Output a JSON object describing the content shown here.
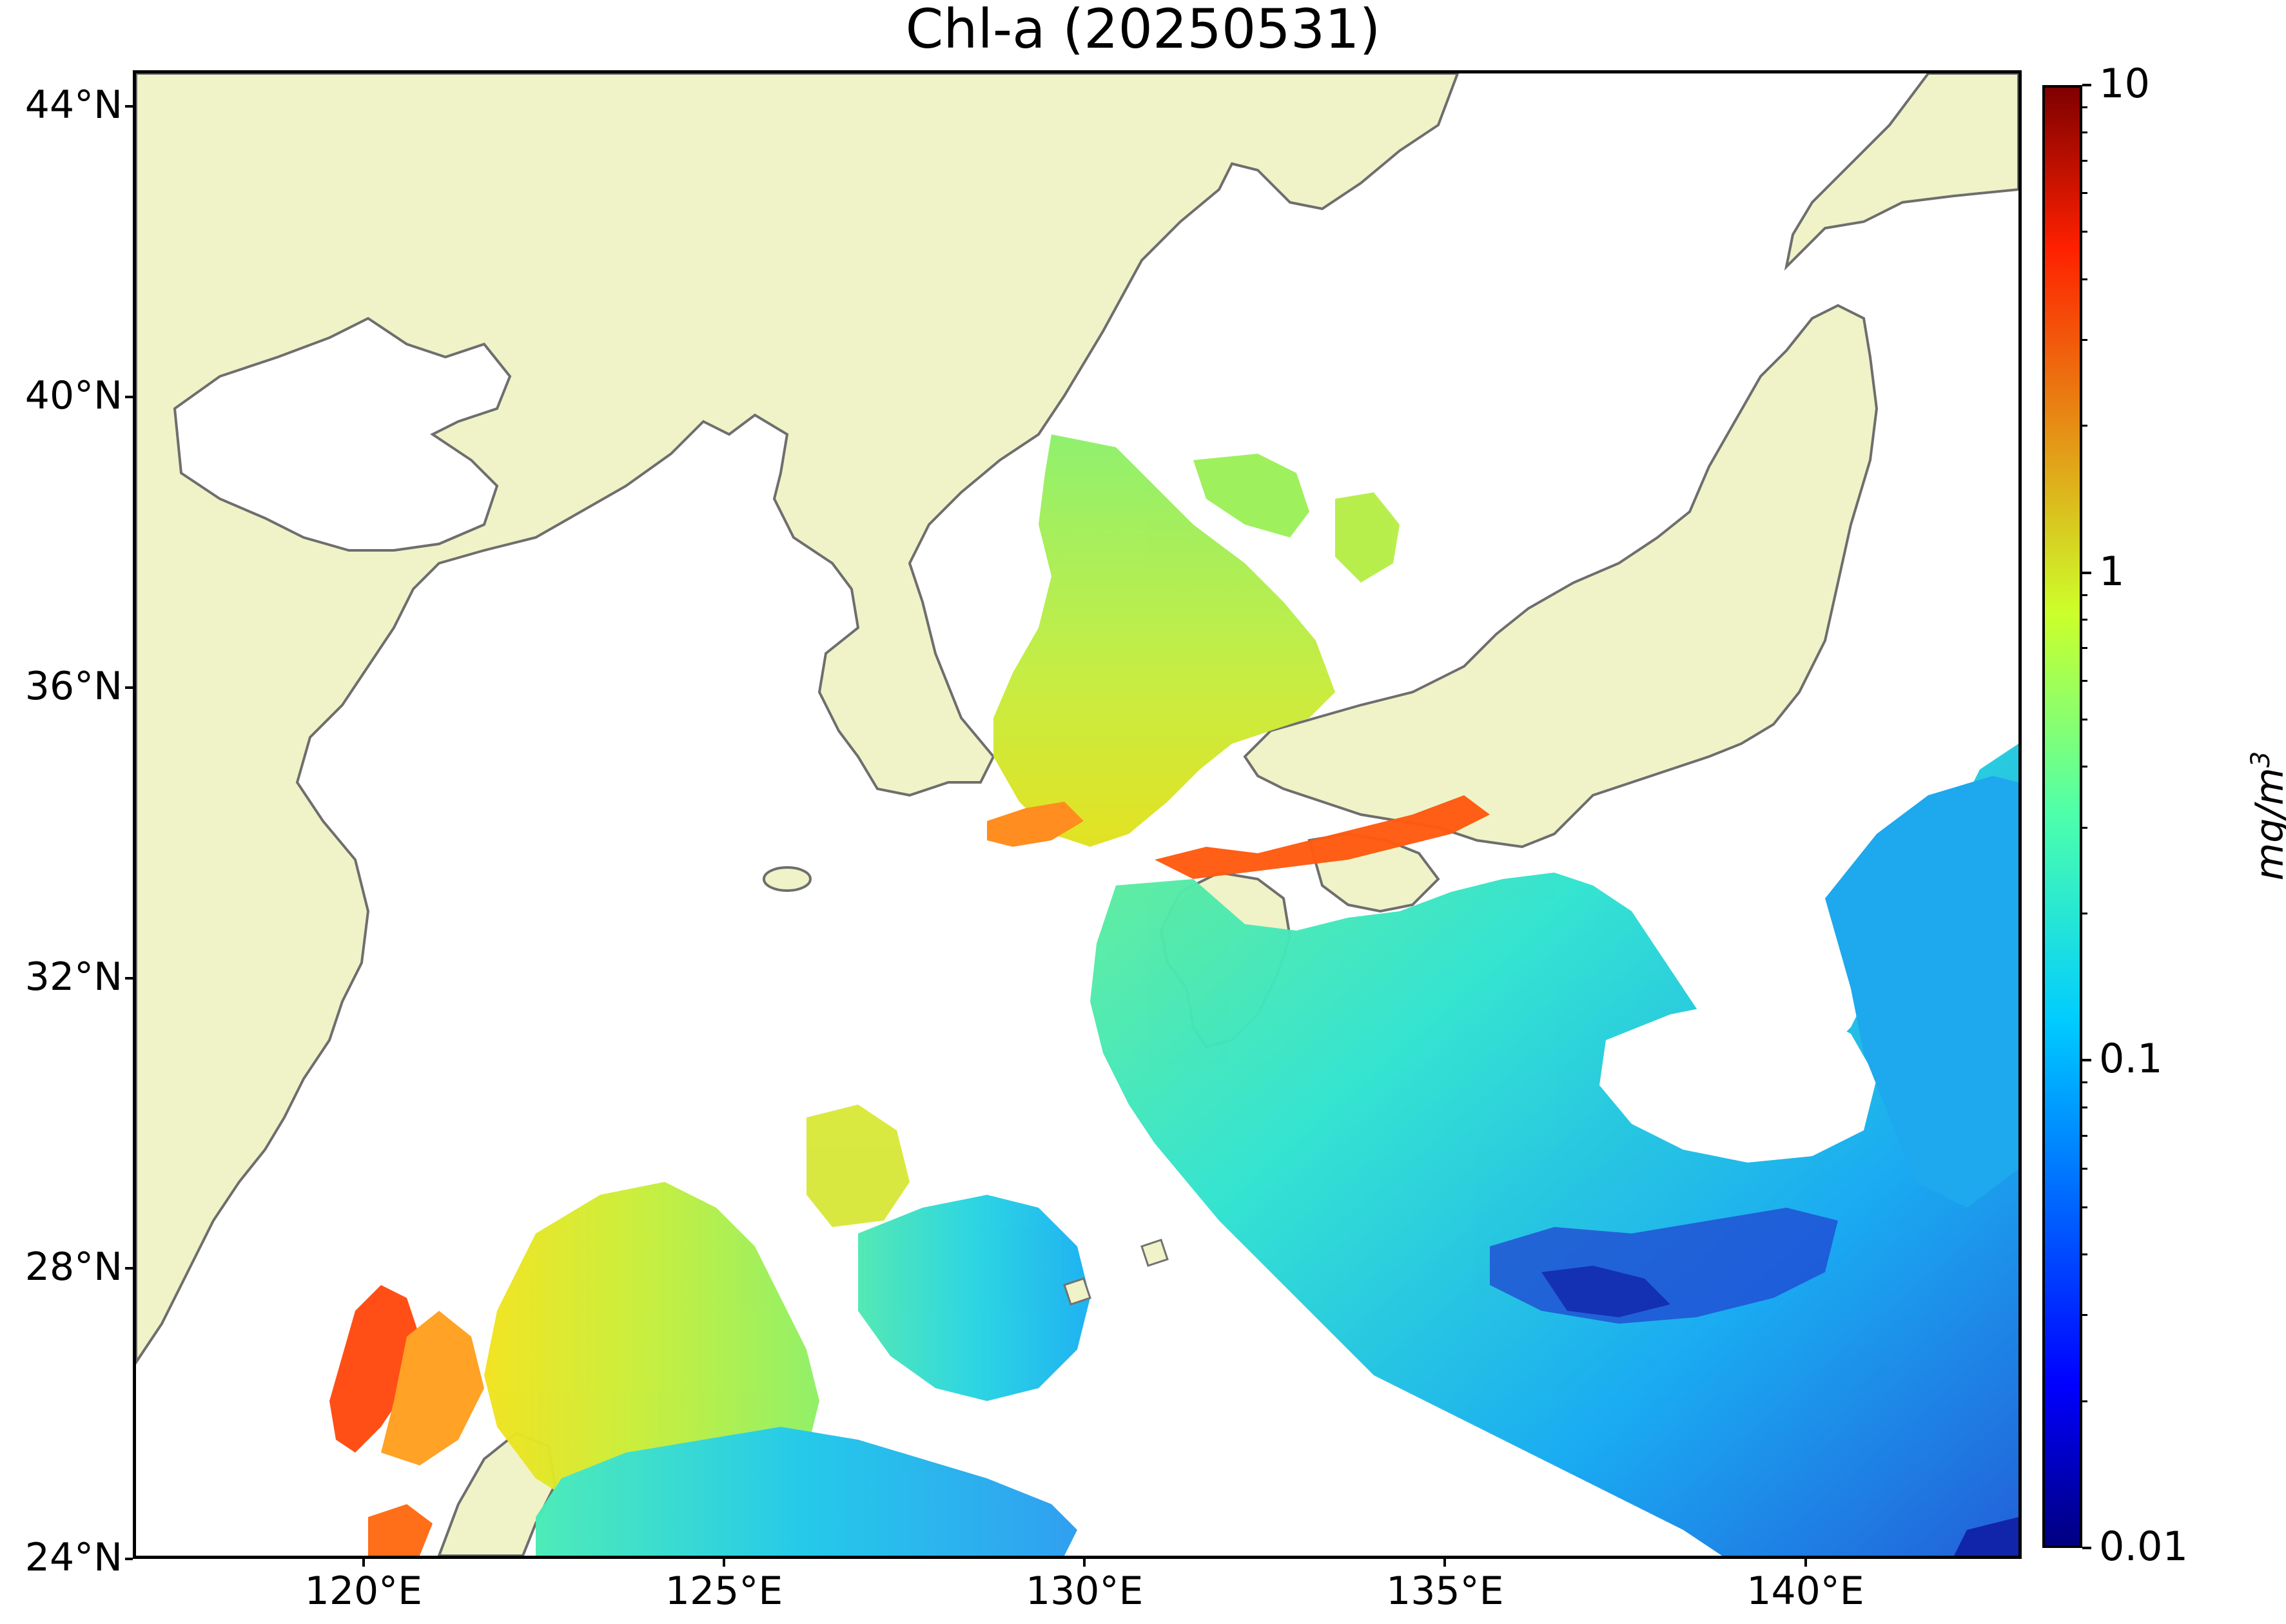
{
  "title": "Chl-a (20250531)",
  "map": {
    "lat_range": [
      24,
      44.5
    ],
    "lon_range": [
      116.8,
      143.0
    ],
    "lat_ticks": [
      {
        "value": 44,
        "label": "44°N"
      },
      {
        "value": 40,
        "label": "40°N"
      },
      {
        "value": 36,
        "label": "36°N"
      },
      {
        "value": 32,
        "label": "32°N"
      },
      {
        "value": 28,
        "label": "28°N"
      },
      {
        "value": 24,
        "label": "24°N"
      }
    ],
    "lon_ticks": [
      {
        "value": 120,
        "label": "120°E"
      },
      {
        "value": 125,
        "label": "125°E"
      },
      {
        "value": 130,
        "label": "130°E"
      },
      {
        "value": 135,
        "label": "135°E"
      },
      {
        "value": 140,
        "label": "140°E"
      }
    ],
    "colors": {
      "land": "#f0f3c7",
      "coastline": "#6e6e6e",
      "no_data": "#ffffff"
    }
  },
  "colorbar": {
    "scale": "log",
    "min": 0.01,
    "max": 10,
    "unit_label": "mg/m",
    "unit_exponent": "3",
    "ticks": [
      {
        "value": 10,
        "label": "10"
      },
      {
        "value": 1,
        "label": "1"
      },
      {
        "value": 0.1,
        "label": "0.1"
      },
      {
        "value": 0.01,
        "label": "0.01"
      }
    ],
    "colormap": "jet"
  }
}
